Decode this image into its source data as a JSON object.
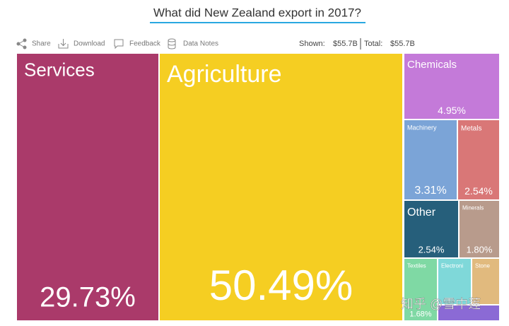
{
  "header": {
    "title": "What did New Zealand export in 2017?"
  },
  "toolbar": {
    "share": "Share",
    "download": "Download",
    "feedback": "Feedback",
    "data_notes": "Data Notes",
    "shown_label": "Shown:",
    "shown_value": "$55.7B",
    "total_label": "Total:",
    "total_value": "$55.7B"
  },
  "watermark": "知乎 @雪中莲",
  "chart_data": {
    "type": "treemap",
    "categories": [
      "Services",
      "Agriculture",
      "Chemicals",
      "Machinery",
      "Metals",
      "Other",
      "Minerals",
      "Textiles",
      "Electroni",
      "Stone",
      null
    ],
    "values": [
      29.73,
      50.49,
      4.95,
      3.31,
      2.54,
      2.54,
      1.8,
      1.68,
      1.3,
      1.0,
      0.8
    ],
    "value_labels": [
      "29.73%",
      "50.49%",
      "4.95%",
      "3.31%",
      "2.54%",
      "2.54%",
      "1.80%",
      "1.68%",
      null,
      null,
      null
    ],
    "colors": [
      "#aa3a6a",
      "#f5ce22",
      "#c47ad9",
      "#7ba4d7",
      "#d97777",
      "#265f7b",
      "#b89b8c",
      "#7fd9a4",
      "#7fd8d9",
      "#e1ba7e",
      "#8b6ad5"
    ]
  }
}
